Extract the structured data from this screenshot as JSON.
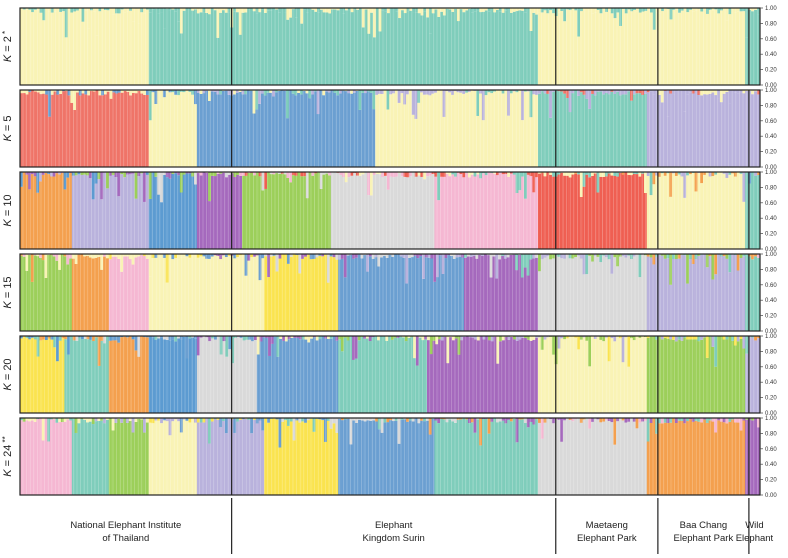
{
  "chart_data": {
    "type": "bar",
    "subtype": "stacked-admixture-barplot",
    "ylim": [
      0,
      1
    ],
    "y_ticks": [
      "0.00",
      "0.20",
      "0.40",
      "0.60",
      "0.80",
      "1.00"
    ],
    "populations": [
      {
        "line1": "National Elephant Institute",
        "line2": "of Thailand",
        "n": 58
      },
      {
        "line1": "Elephant",
        "line2": "Kingdom Surin",
        "n": 113
      },
      {
        "line1": "Maetaeng",
        "line2": "Elephant Park",
        "n": 36
      },
      {
        "line1": "Baa Chang",
        "line2": "Elephant Park",
        "n": 32
      },
      {
        "line1": "Wild",
        "line2": "Elephant",
        "n": 5
      }
    ],
    "panels": [
      {
        "label": "K = 2",
        "mark": "*",
        "segments": [
          [
            [
              0.0,
              0.174,
              [
                "#f9f3b5"
              ]
            ],
            [
              0.174,
              0.239,
              [
                "#7fcdbb"
              ]
            ],
            [
              0.239,
              0.7,
              [
                "#7fcdbb"
              ]
            ],
            [
              0.7,
              0.98,
              [
                "#f9f3b5"
              ]
            ],
            [
              0.98,
              1.0,
              [
                "#7fcdbb"
              ]
            ]
          ]
        ]
      },
      {
        "label": "K = 5",
        "segments": [
          [
            [
              0.0,
              0.174,
              [
                "#ef7468"
              ]
            ],
            [
              0.174,
              0.239,
              [
                "#f9f3b5"
              ]
            ],
            [
              0.239,
              0.48,
              [
                "#6b9fd1"
              ]
            ],
            [
              0.48,
              0.7,
              [
                "#f9f3b5"
              ]
            ],
            [
              0.7,
              0.847,
              [
                "#7fcdbb"
              ]
            ],
            [
              0.847,
              0.98,
              [
                "#b9b2dc"
              ]
            ],
            [
              0.98,
              1.0,
              [
                "#b9b2dc"
              ]
            ]
          ]
        ]
      },
      {
        "label": "K = 10",
        "segments": [
          [
            [
              0.0,
              0.07,
              [
                "#f4a04e"
              ]
            ],
            [
              0.07,
              0.174,
              [
                "#b9b2dc"
              ]
            ],
            [
              0.174,
              0.239,
              [
                "#5c9bd1"
              ]
            ],
            [
              0.239,
              0.3,
              [
                "#a569bd"
              ]
            ],
            [
              0.3,
              0.42,
              [
                "#9ccf5a"
              ]
            ],
            [
              0.42,
              0.56,
              [
                "#d9d9d9"
              ]
            ],
            [
              0.56,
              0.7,
              [
                "#f5b7d2"
              ]
            ],
            [
              0.7,
              0.847,
              [
                "#ef5f52"
              ]
            ],
            [
              0.847,
              0.98,
              [
                "#f9f3b5"
              ]
            ],
            [
              0.98,
              1.0,
              [
                "#7fcdbb"
              ]
            ]
          ]
        ]
      },
      {
        "label": "K = 15",
        "segments": [
          [
            [
              0.0,
              0.07,
              [
                "#9ccf5a"
              ]
            ],
            [
              0.07,
              0.12,
              [
                "#f4a04e"
              ]
            ],
            [
              0.12,
              0.174,
              [
                "#f5b7d2"
              ]
            ],
            [
              0.174,
              0.239,
              [
                "#f9f3b5"
              ]
            ],
            [
              0.239,
              0.33,
              [
                "#f9f3b5"
              ]
            ],
            [
              0.33,
              0.43,
              [
                "#fae34f"
              ]
            ],
            [
              0.43,
              0.6,
              [
                "#6b9fd1"
              ]
            ],
            [
              0.6,
              0.7,
              [
                "#a569bd"
              ]
            ],
            [
              0.7,
              0.847,
              [
                "#d9d9d9"
              ]
            ],
            [
              0.847,
              0.98,
              [
                "#b9b2dc"
              ]
            ],
            [
              0.98,
              1.0,
              [
                "#7fcdbb"
              ]
            ]
          ]
        ]
      },
      {
        "label": "K = 20",
        "segments": [
          [
            [
              0.0,
              0.06,
              [
                "#fae34f"
              ]
            ],
            [
              0.06,
              0.12,
              [
                "#7fcdbb"
              ]
            ],
            [
              0.12,
              0.174,
              [
                "#f4a04e"
              ]
            ],
            [
              0.174,
              0.239,
              [
                "#5c9bd1"
              ]
            ],
            [
              0.239,
              0.32,
              [
                "#d9d9d9"
              ]
            ],
            [
              0.32,
              0.43,
              [
                "#6b9fd1"
              ]
            ],
            [
              0.43,
              0.55,
              [
                "#7fcdbb"
              ]
            ],
            [
              0.55,
              0.7,
              [
                "#a569bd"
              ]
            ],
            [
              0.7,
              0.847,
              [
                "#f9f3b5"
              ]
            ],
            [
              0.847,
              0.98,
              [
                "#9ccf5a"
              ]
            ],
            [
              0.98,
              1.0,
              [
                "#b9b2dc"
              ]
            ]
          ]
        ]
      },
      {
        "label": "K = 24",
        "mark": "**",
        "segments": [
          [
            [
              0.0,
              0.07,
              [
                "#f5b7d2"
              ]
            ],
            [
              0.07,
              0.12,
              [
                "#7fcdbb"
              ]
            ],
            [
              0.12,
              0.174,
              [
                "#9ccf5a"
              ]
            ],
            [
              0.174,
              0.239,
              [
                "#f9f3b5"
              ]
            ],
            [
              0.239,
              0.33,
              [
                "#b9b2dc"
              ]
            ],
            [
              0.33,
              0.43,
              [
                "#fae34f"
              ]
            ],
            [
              0.43,
              0.56,
              [
                "#6b9fd1"
              ]
            ],
            [
              0.56,
              0.7,
              [
                "#7fcdbb"
              ]
            ],
            [
              0.7,
              0.847,
              [
                "#d9d9d9"
              ]
            ],
            [
              0.847,
              0.98,
              [
                "#f4a04e"
              ]
            ],
            [
              0.98,
              1.0,
              [
                "#a569bd"
              ]
            ]
          ]
        ]
      }
    ]
  }
}
